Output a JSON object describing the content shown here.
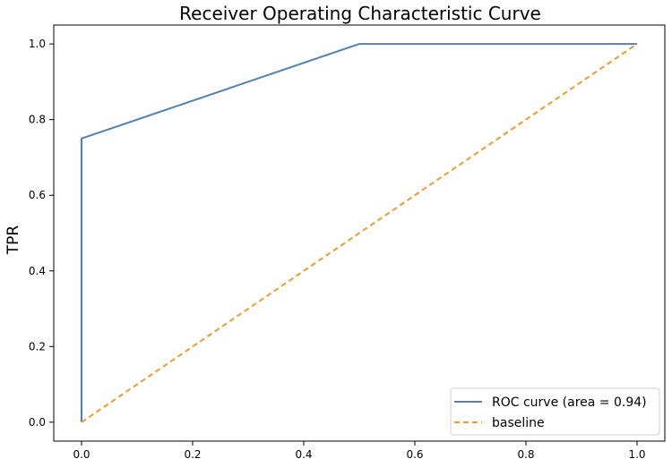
{
  "chart_data": {
    "type": "line",
    "title": "Receiver Operating Characteristic Curve",
    "xlabel": "",
    "ylabel": "TPR",
    "xlim": [
      -0.05,
      1.05
    ],
    "ylim": [
      -0.05,
      1.05
    ],
    "x_ticks": [
      0.0,
      0.2,
      0.4,
      0.6,
      0.8,
      1.0
    ],
    "x_tick_labels": [
      "0.0",
      "0.2",
      "0.4",
      "0.6",
      "0.8",
      "1.0"
    ],
    "y_ticks": [
      0.0,
      0.2,
      0.4,
      0.6,
      0.8,
      1.0
    ],
    "y_tick_labels": [
      "0.0",
      "0.2",
      "0.4",
      "0.6",
      "0.8",
      "1.0"
    ],
    "grid": false,
    "legend_position": "lower-right",
    "series": [
      {
        "name": "ROC curve (area = 0.94)",
        "x": [
          0.0,
          0.0,
          0.5,
          1.0
        ],
        "y": [
          0.0,
          0.75,
          1.0,
          1.0
        ],
        "color": "#4f81b4",
        "style": "solid"
      },
      {
        "name": "baseline",
        "x": [
          0.0,
          1.0
        ],
        "y": [
          0.0,
          1.0
        ],
        "color": "#ee9a2e",
        "style": "dashed"
      }
    ]
  }
}
